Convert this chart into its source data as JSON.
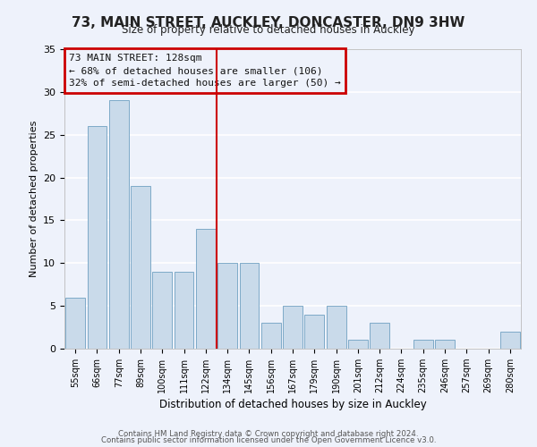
{
  "title": "73, MAIN STREET, AUCKLEY, DONCASTER, DN9 3HW",
  "subtitle": "Size of property relative to detached houses in Auckley",
  "xlabel": "Distribution of detached houses by size in Auckley",
  "ylabel": "Number of detached properties",
  "categories": [
    "55sqm",
    "66sqm",
    "77sqm",
    "89sqm",
    "100sqm",
    "111sqm",
    "122sqm",
    "134sqm",
    "145sqm",
    "156sqm",
    "167sqm",
    "179sqm",
    "190sqm",
    "201sqm",
    "212sqm",
    "224sqm",
    "235sqm",
    "246sqm",
    "257sqm",
    "269sqm",
    "280sqm"
  ],
  "values": [
    6,
    26,
    29,
    19,
    9,
    9,
    14,
    10,
    10,
    3,
    5,
    4,
    5,
    1,
    3,
    0,
    1,
    1,
    0,
    0,
    2
  ],
  "bar_color": "#c9daea",
  "bar_edge_color": "#7eaac8",
  "background_color": "#eef2fb",
  "grid_color": "#ffffff",
  "red_line_x": 6.5,
  "red_line_color": "#cc0000",
  "annotation_line1": "73 MAIN STREET: 128sqm",
  "annotation_line2": "← 68% of detached houses are smaller (106)",
  "annotation_line3": "32% of semi-detached houses are larger (50) →",
  "annotation_box_color": "#cc0000",
  "ylim": [
    0,
    35
  ],
  "yticks": [
    0,
    5,
    10,
    15,
    20,
    25,
    30,
    35
  ],
  "footer1": "Contains HM Land Registry data © Crown copyright and database right 2024.",
  "footer2": "Contains public sector information licensed under the Open Government Licence v3.0."
}
